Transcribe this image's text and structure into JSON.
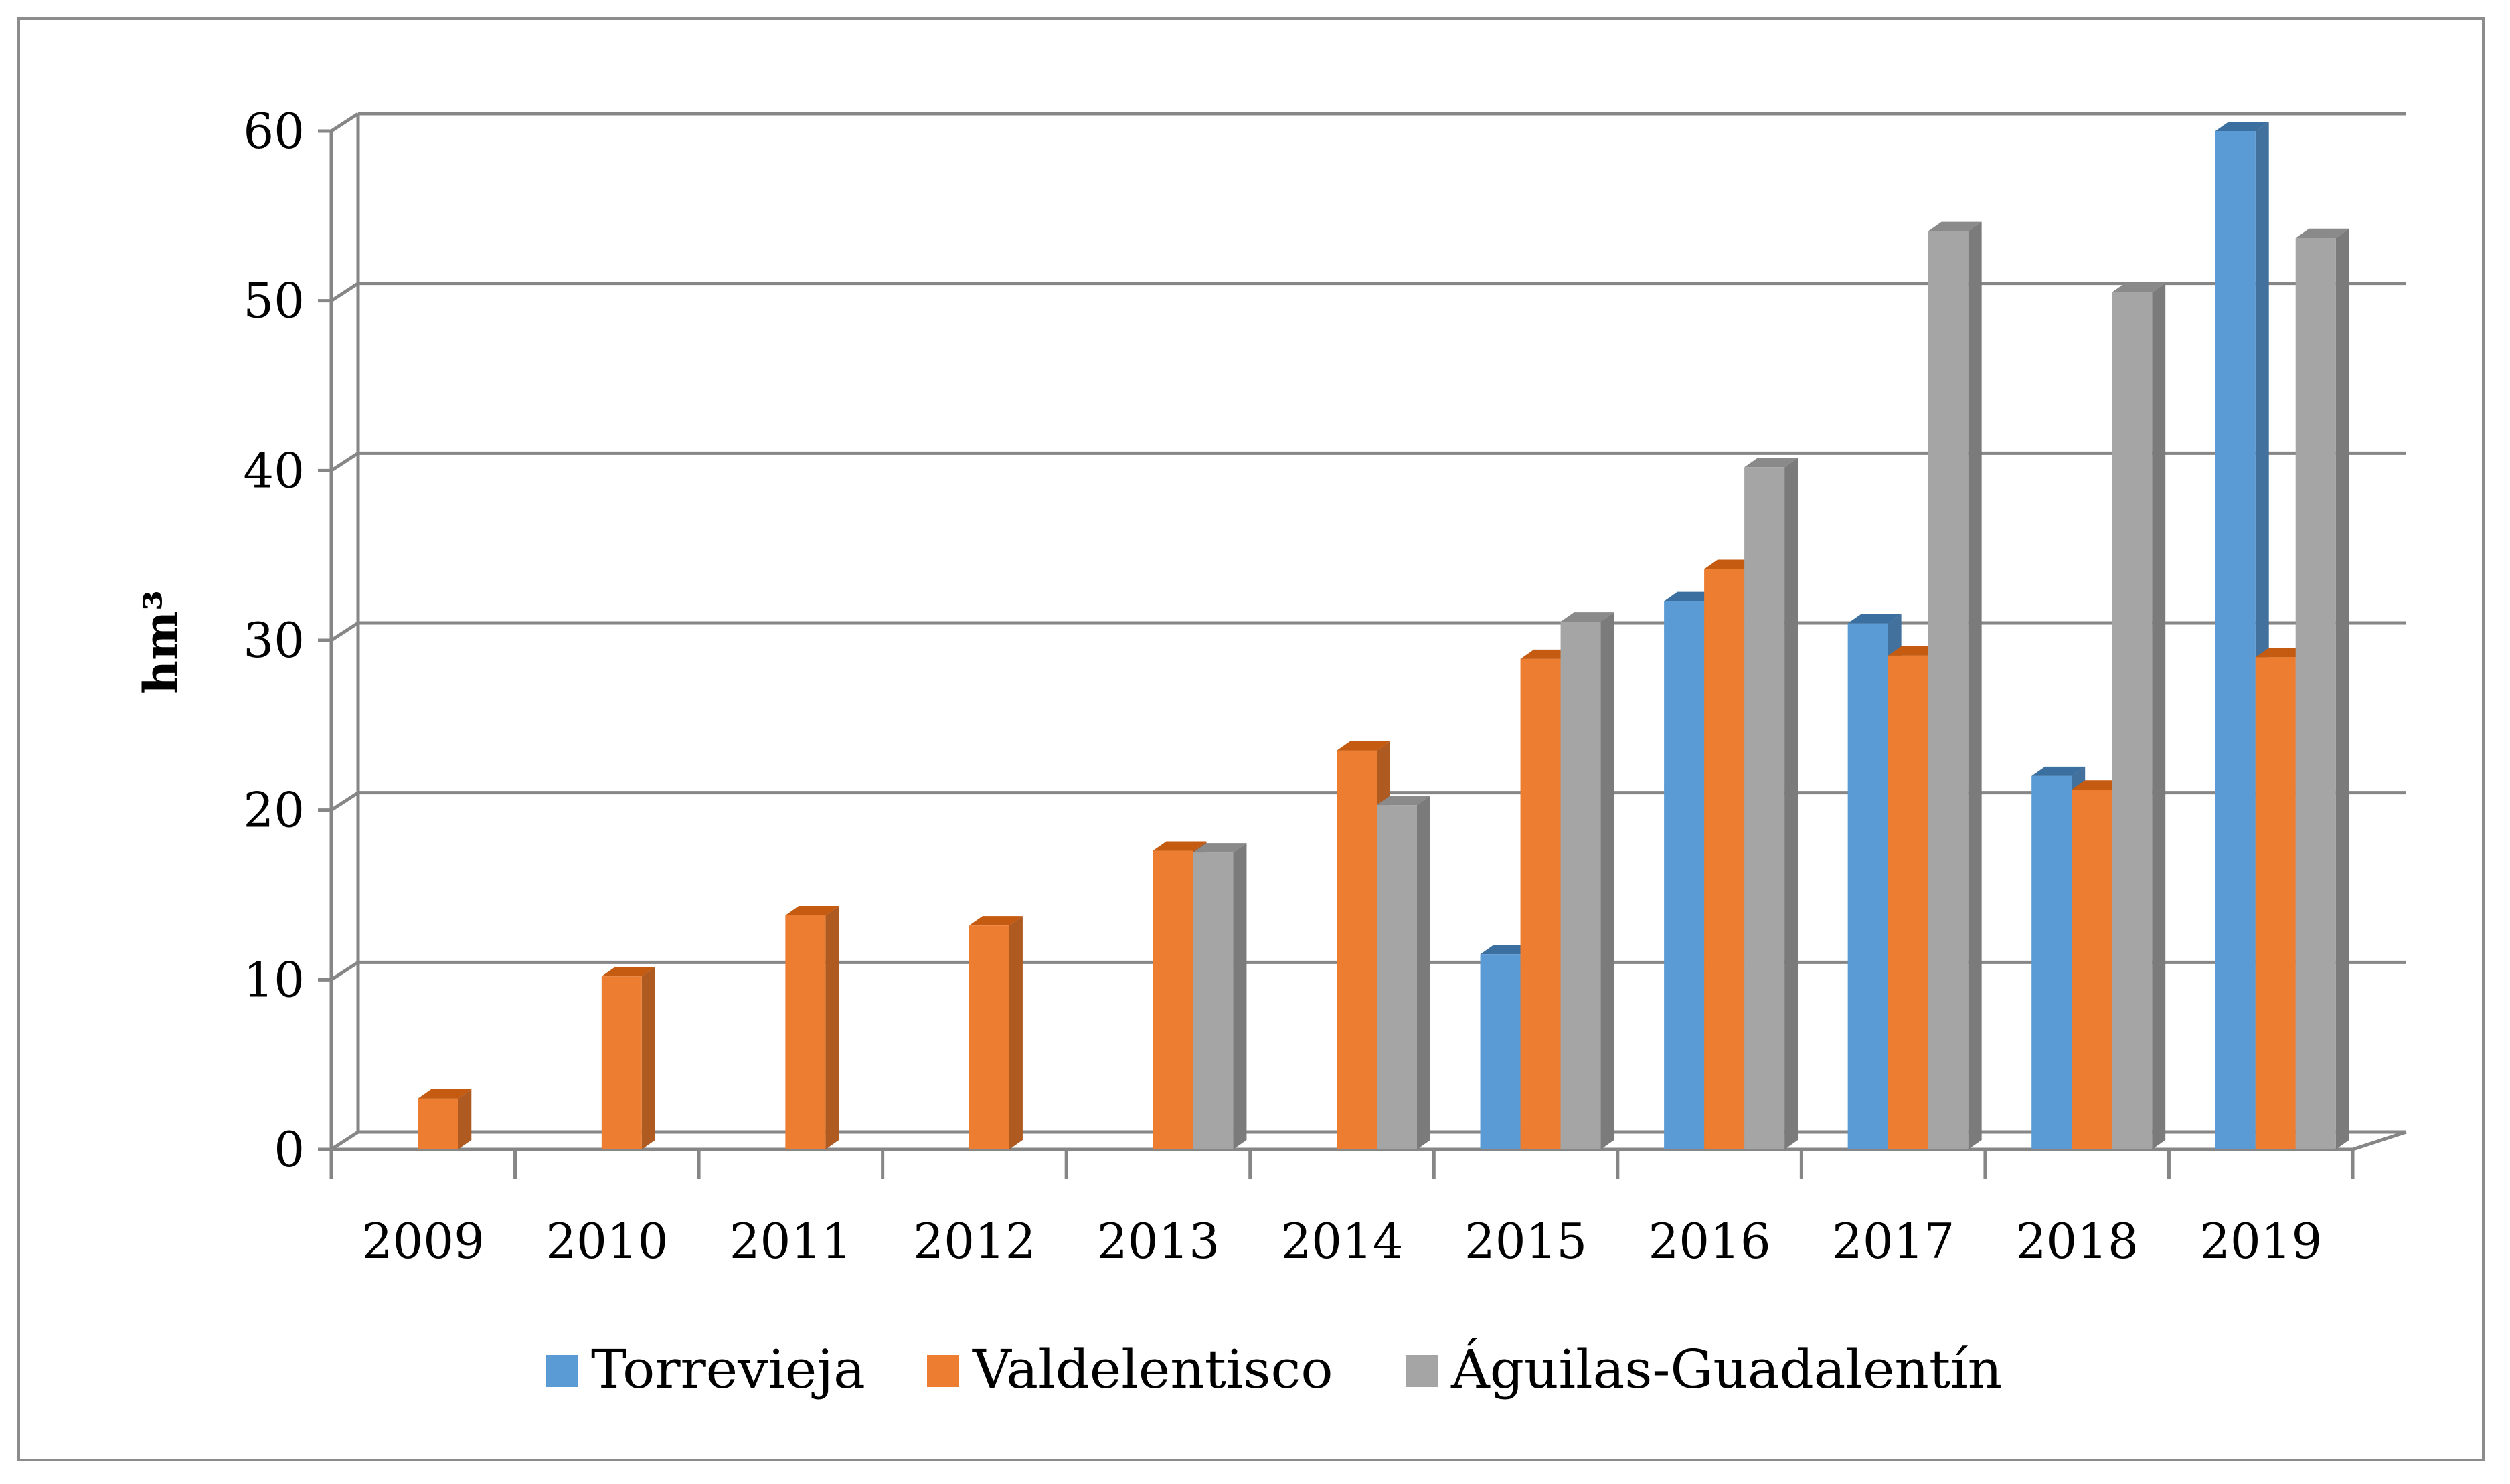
{
  "chart_data": {
    "type": "bar",
    "title": "",
    "xlabel": "",
    "ylabel": "hm³",
    "ylim": [
      0,
      60
    ],
    "yticks": [
      0,
      10,
      20,
      30,
      40,
      50,
      60
    ],
    "categories": [
      "2009",
      "2010",
      "2011",
      "2012",
      "2013",
      "2014",
      "2015",
      "2016",
      "2017",
      "2018",
      "2019"
    ],
    "series": [
      {
        "name": "Torrevieja",
        "color": "#5b9bd5",
        "side": "#41719c",
        "top": "#3a6fa0",
        "values": [
          0,
          0,
          0,
          0,
          0,
          0,
          11.5,
          32.3,
          31,
          22,
          60
        ]
      },
      {
        "name": "Valdelentisco",
        "color": "#ed7d31",
        "side": "#ae5a21",
        "top": "#c55a11",
        "values": [
          3,
          10.2,
          13.8,
          13.2,
          17.6,
          23.5,
          28.9,
          34.2,
          29.1,
          21.2,
          29
        ]
      },
      {
        "name": "Águilas-Guadalentín",
        "color": "#a5a5a5",
        "side": "#7b7b7b",
        "top": "#8a8a8a",
        "values": [
          0,
          0,
          0,
          0,
          17.5,
          20.3,
          31.1,
          40.2,
          54.1,
          50.5,
          53.7
        ]
      }
    ],
    "legend": "bottom",
    "grid": true
  }
}
